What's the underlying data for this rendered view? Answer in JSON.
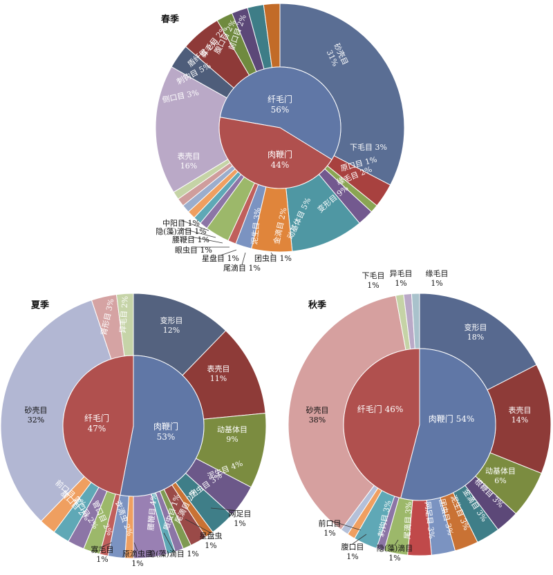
{
  "chart_data": [
    {
      "type": "pie",
      "title": "春季",
      "inner": [
        {
          "name": "纤毛门",
          "value": 56,
          "label": "56%"
        },
        {
          "name": "肉鞭门",
          "value": 44,
          "label": "44%"
        }
      ],
      "outer": [
        {
          "name": "砂壳目",
          "value": 31,
          "label": "31%"
        },
        {
          "name": "下毛目",
          "value": 3,
          "label": "3%"
        },
        {
          "name": "原口目",
          "value": 1,
          "label": "1%"
        },
        {
          "name": "缘毛目",
          "value": 2,
          "label": "2%"
        },
        {
          "name": "变形目",
          "value": 9,
          "label": "9%"
        },
        {
          "name": "动基体目",
          "value": 5,
          "label": "5%"
        },
        {
          "name": "金滴目",
          "value": 2,
          "label": "2%"
        },
        {
          "name": "团虫目",
          "value": 1,
          "label": "1%"
        },
        {
          "name": "泥生目",
          "value": 3,
          "label": "3%"
        },
        {
          "name": "尾滴目",
          "value": 1,
          "label": "1%"
        },
        {
          "name": "星盘目",
          "value": 1,
          "label": "1%"
        },
        {
          "name": "眼虫目",
          "value": 1,
          "label": "1%"
        },
        {
          "name": "腰鞭目",
          "value": 1,
          "label": "1%"
        },
        {
          "name": "隐(藻)滴目",
          "value": 1,
          "label": "1%"
        },
        {
          "name": "中阳目",
          "value": 1,
          "label": "1%"
        },
        {
          "name": "表壳目",
          "value": 16,
          "label": "16%"
        },
        {
          "name": "侧口目",
          "value": 3,
          "label": "3%"
        },
        {
          "name": "刺钩目",
          "value": 5,
          "label": "5%"
        },
        {
          "name": "盾纤目",
          "value": 2,
          "label": "2%"
        },
        {
          "name": "寡毛目",
          "value": 2,
          "label": "2%"
        },
        {
          "name": "腹口目",
          "value": 2,
          "label": "2%"
        },
        {
          "name": "前口目",
          "value": 2,
          "label": "2%"
        }
      ]
    },
    {
      "type": "pie",
      "title": "夏季",
      "inner": [
        {
          "name": "肉鞭门",
          "value": 53,
          "label": "53%"
        },
        {
          "name": "纤毛门",
          "value": 47,
          "label": "47%"
        }
      ],
      "outer": [
        {
          "name": "变形目",
          "value": 12,
          "label": "12%"
        },
        {
          "name": "表壳目",
          "value": 11,
          "label": "11%"
        },
        {
          "name": "动基体目",
          "value": 9,
          "label": "9%"
        },
        {
          "name": "泥生目",
          "value": 4,
          "label": "4%"
        },
        {
          "name": "团虫目",
          "value": 3,
          "label": "3%"
        },
        {
          "name": "网足目",
          "value": 1,
          "label": "1%"
        },
        {
          "name": "尾滴目",
          "value": 2,
          "label": "2%"
        },
        {
          "name": "星盘虫",
          "value": 1,
          "label": "1%"
        },
        {
          "name": "眼虫目",
          "value": 1,
          "label": "1%"
        },
        {
          "name": "隐(藻)滴目",
          "value": 1,
          "label": "1%"
        },
        {
          "name": "腰鞭目",
          "value": 4,
          "label": "4%"
        },
        {
          "name": "原滴虫目",
          "value": 1,
          "label": "1%"
        },
        {
          "name": "衣滴虫",
          "value": 2,
          "label": "2%"
        },
        {
          "name": "寡毛目",
          "value": 1,
          "label": "1%"
        },
        {
          "name": "管口目",
          "value": 2,
          "label": "2%"
        },
        {
          "name": "篮口目",
          "value": 2,
          "label": "2%"
        },
        {
          "name": "腹口目",
          "value": 2,
          "label": "2%"
        },
        {
          "name": "前口目",
          "value": 2,
          "label": "2%"
        },
        {
          "name": "砂壳目",
          "value": 32,
          "label": "32%"
        },
        {
          "name": "肾形目",
          "value": 3,
          "label": "3%"
        },
        {
          "name": "异毛目",
          "value": 2,
          "label": "2%"
        }
      ]
    },
    {
      "type": "pie",
      "title": "秋季",
      "inner": [
        {
          "name": "肉鞭门",
          "value": 54,
          "label": "54%"
        },
        {
          "name": "纤毛门",
          "value": 46,
          "label": "46%"
        }
      ],
      "outer": [
        {
          "name": "变形目",
          "value": 18,
          "label": "18%"
        },
        {
          "name": "表壳目",
          "value": 14,
          "label": "14%"
        },
        {
          "name": "动基体目",
          "value": 6,
          "label": "6%"
        },
        {
          "name": "根鞭目",
          "value": 3,
          "label": "3%"
        },
        {
          "name": "金滴目",
          "value": 3,
          "label": "3%"
        },
        {
          "name": "泥生目",
          "value": 3,
          "label": "3%"
        },
        {
          "name": "团虫目",
          "value": 3,
          "label": "3%"
        },
        {
          "name": "网足目",
          "value": 3,
          "label": "3%"
        },
        {
          "name": "尾滴目",
          "value": 3,
          "label": "3%"
        },
        {
          "name": "隐(藻)滴目",
          "value": 1,
          "label": "1%"
        },
        {
          "name": "刺钩目",
          "value": 3,
          "label": "3%"
        },
        {
          "name": "腹口目",
          "value": 1,
          "label": "1%"
        },
        {
          "name": "前口目",
          "value": 1,
          "label": "1%"
        },
        {
          "name": "砂壳目",
          "value": 38,
          "label": "38%"
        },
        {
          "name": "下毛目",
          "value": 1,
          "label": "1%"
        },
        {
          "name": "异毛目",
          "value": 1,
          "label": "1%"
        },
        {
          "name": "缘毛目",
          "value": 1,
          "label": "1%"
        }
      ]
    }
  ]
}
